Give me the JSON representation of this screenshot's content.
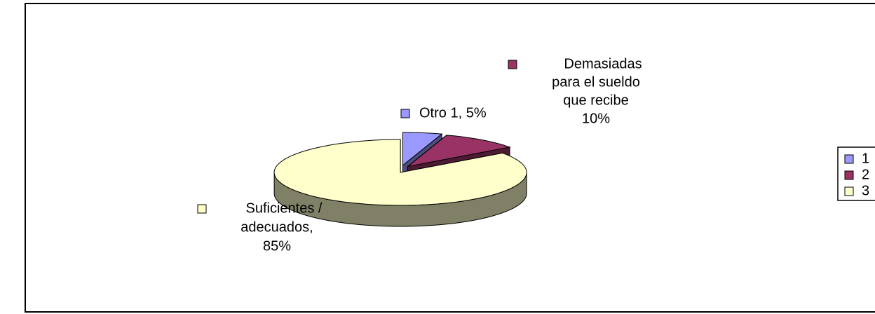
{
  "chart_data": {
    "type": "pie3d",
    "categories": [
      "1",
      "2",
      "3"
    ],
    "values": [
      5,
      10,
      85
    ],
    "value_labels": [
      [
        "Otro 1, 5%"
      ],
      [
        "Demasiadas",
        "para el sueldo",
        "que recibe",
        "10%"
      ],
      [
        "Suficientes /",
        "adecuados,",
        "85%"
      ]
    ],
    "colors": [
      "#9999ff",
      "#993366",
      "#ffffcc"
    ],
    "legend": "right"
  }
}
